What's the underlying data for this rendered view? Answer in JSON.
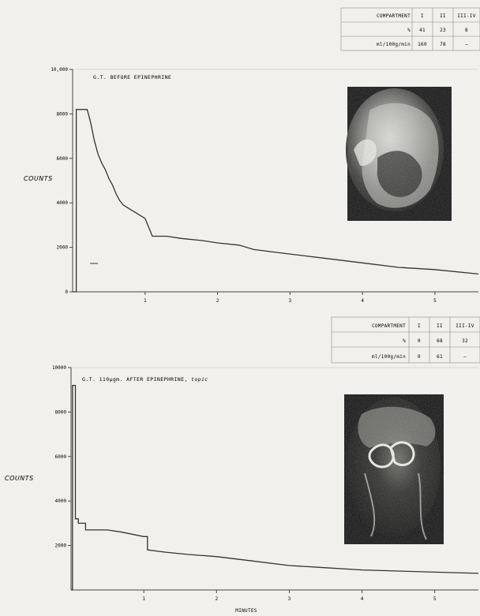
{
  "chart_data": [
    {
      "type": "line",
      "title": "G.T. BEFORE EPINEPHRINE",
      "xlabel": "",
      "ylabel": "COUNTS",
      "xlim": [
        0,
        5.6
      ],
      "ylim": [
        0,
        10000
      ],
      "x_ticks": [
        1,
        2,
        3,
        4,
        5
      ],
      "y_ticks": [
        {
          "v": 0,
          "label": "0"
        },
        {
          "v": 2000,
          "label": "2000"
        },
        {
          "v": 4000,
          "label": "4000"
        },
        {
          "v": 6000,
          "label": "6000"
        },
        {
          "v": 8000,
          "label": "8000"
        },
        {
          "v": 10000,
          "label": "10,000"
        }
      ],
      "series": [
        {
          "x": [
            0,
            0.05,
            0.05,
            0.2,
            0.25,
            0.3,
            0.35,
            0.4,
            0.45,
            0.5,
            0.55,
            0.6,
            0.65,
            0.7,
            0.75,
            0.8,
            0.9,
            1.0,
            1.1,
            1.3,
            1.5,
            1.8,
            2.0,
            2.3,
            2.5,
            3.0,
            3.5,
            4.0,
            4.5,
            5.0,
            5.6
          ],
          "y": [
            0,
            0,
            8200,
            8200,
            7600,
            6800,
            6200,
            5800,
            5500,
            5100,
            4800,
            4400,
            4100,
            3900,
            3800,
            3700,
            3500,
            3300,
            2500,
            2500,
            2400,
            2300,
            2200,
            2100,
            1900,
            1700,
            1500,
            1300,
            1100,
            1000,
            800
          ]
        }
      ],
      "table": {
        "rows": [
          [
            "COMPARTMENT",
            "I",
            "II",
            "III-IV"
          ],
          [
            "%",
            "41",
            "23",
            "8"
          ],
          [
            "ml/100g/min",
            "160",
            "78",
            "—"
          ]
        ]
      }
    },
    {
      "type": "line",
      "title": "G.T. 110µgm. AFTER EPINEPHRINE, ",
      "title_suffix": "topic",
      "xlabel": "MINUTES",
      "ylabel": "COUNTS",
      "xlim": [
        0,
        5.6
      ],
      "ylim": [
        0,
        10000
      ],
      "x_ticks": [
        1,
        2,
        3,
        4,
        5
      ],
      "y_ticks": [
        {
          "v": 2000,
          "label": "2000"
        },
        {
          "v": 4000,
          "label": "4000"
        },
        {
          "v": 6000,
          "label": "6000"
        },
        {
          "v": 8000,
          "label": "8000"
        },
        {
          "v": 10000,
          "label": "10000"
        }
      ],
      "series": [
        {
          "x": [
            0,
            0.02,
            0.02,
            0.06,
            0.06,
            0.1,
            0.1,
            0.2,
            0.2,
            0.5,
            0.7,
            1.0,
            1.05,
            1.05,
            1.3,
            1.6,
            2.0,
            2.5,
            3.0,
            3.5,
            4.0,
            4.5,
            5.0,
            5.6
          ],
          "y": [
            0,
            0,
            9200,
            9200,
            3200,
            3200,
            3000,
            3000,
            2700,
            2700,
            2600,
            2400,
            2400,
            1800,
            1700,
            1600,
            1500,
            1300,
            1100,
            1000,
            900,
            850,
            800,
            750
          ]
        }
      ],
      "table": {
        "rows": [
          [
            "COMPARTMENT",
            "I",
            "II",
            "III-IV"
          ],
          [
            "%",
            "0",
            "68",
            "32"
          ],
          [
            "ml/100g/min",
            "0",
            "61",
            "—"
          ]
        ]
      }
    }
  ]
}
